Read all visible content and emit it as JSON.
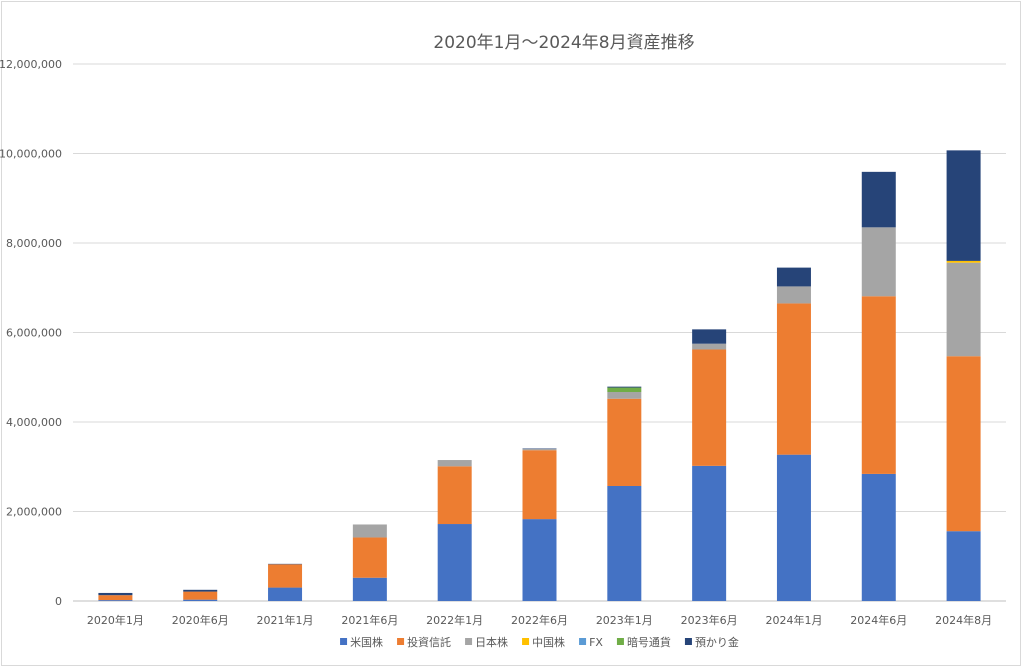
{
  "chart_data": {
    "type": "bar",
    "stacked": true,
    "title": "2020年1月～2024年8月資産推移",
    "xlabel": "",
    "ylabel": "",
    "ylim": [
      0,
      12000000
    ],
    "yticks": [
      0,
      2000000,
      4000000,
      6000000,
      8000000,
      10000000,
      12000000
    ],
    "ytick_labels": [
      "0",
      "2,000,000",
      "4,000,000",
      "6,000,000",
      "8,000,000",
      "10,000,000",
      "12,000,000"
    ],
    "grid": true,
    "legend_position": "bottom",
    "categories": [
      "2020年1月",
      "2020年6月",
      "2021年1月",
      "2021年6月",
      "2022年1月",
      "2022年6月",
      "2023年1月",
      "2023年6月",
      "2024年1月",
      "2024年6月",
      "2024年8月"
    ],
    "series": [
      {
        "name": "米国株",
        "color": "#4472c4",
        "values": [
          20000,
          30000,
          300000,
          520000,
          1720000,
          1830000,
          2570000,
          3020000,
          3270000,
          2840000,
          1560000
        ]
      },
      {
        "name": "投資信託",
        "color": "#ed7d31",
        "values": [
          110000,
          180000,
          520000,
          900000,
          1290000,
          1540000,
          1950000,
          2600000,
          3380000,
          3970000,
          3910000
        ]
      },
      {
        "name": "日本株",
        "color": "#a5a5a5",
        "values": [
          0,
          0,
          0,
          290000,
          140000,
          30000,
          150000,
          130000,
          380000,
          1540000,
          2090000
        ]
      },
      {
        "name": "中国株",
        "color": "#ffc000",
        "values": [
          0,
          0,
          0,
          0,
          0,
          0,
          0,
          0,
          0,
          0,
          40000
        ]
      },
      {
        "name": "FX",
        "color": "#5b9bd5",
        "values": [
          0,
          0,
          0,
          0,
          0,
          0,
          0,
          0,
          0,
          0,
          0
        ]
      },
      {
        "name": "暗号通貨",
        "color": "#70ad47",
        "values": [
          0,
          0,
          0,
          0,
          0,
          0,
          100000,
          0,
          0,
          0,
          0
        ]
      },
      {
        "name": "預かり金",
        "color": "#264478",
        "values": [
          50000,
          40000,
          10000,
          0,
          0,
          10000,
          20000,
          320000,
          420000,
          1240000,
          2470000
        ]
      }
    ]
  }
}
